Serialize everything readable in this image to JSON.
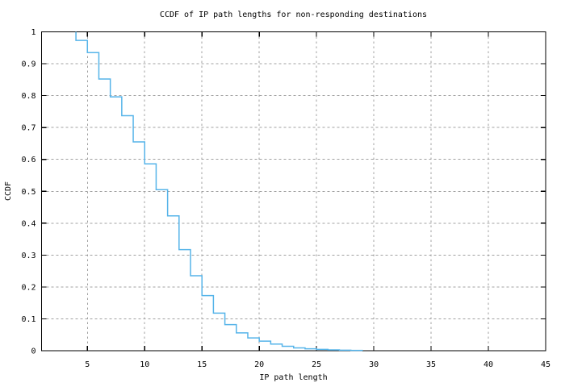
{
  "chart_data": {
    "type": "line",
    "subtype": "step-ccdf",
    "title": "CCDF of IP path lengths for non-responding destinations",
    "xlabel": "IP path length",
    "ylabel": "CCDF",
    "xlim": [
      1,
      45
    ],
    "ylim": [
      0,
      1
    ],
    "xticks": [
      5,
      10,
      15,
      20,
      25,
      30,
      35,
      40,
      45
    ],
    "yticks": [
      {
        "value": 0,
        "label": "0"
      },
      {
        "value": 0.1,
        "label": "0.1"
      },
      {
        "value": 0.2,
        "label": "0.2"
      },
      {
        "value": 0.3,
        "label": "0.3"
      },
      {
        "value": 0.4,
        "label": "0.4"
      },
      {
        "value": 0.5,
        "label": "0.5"
      },
      {
        "value": 0.6,
        "label": "0.6"
      },
      {
        "value": 0.7,
        "label": "0.7"
      },
      {
        "value": 0.8,
        "label": "0.8"
      },
      {
        "value": 0.9,
        "label": "0.9"
      },
      {
        "value": 1,
        "label": "1"
      }
    ],
    "grid": true,
    "legend": "none",
    "colors": {
      "line": "#56B4E9",
      "grid": "#a0a0a0",
      "border": "#000000",
      "background": "#ffffff",
      "text": "#000000"
    },
    "series": [
      {
        "name": "ccdf-of-ip-path-length",
        "style": "steps",
        "points": [
          [
            4,
            1.0
          ],
          [
            4,
            0.973
          ],
          [
            5,
            0.935
          ],
          [
            6,
            0.852
          ],
          [
            7,
            0.796
          ],
          [
            8,
            0.737
          ],
          [
            9,
            0.655
          ],
          [
            10,
            0.586
          ],
          [
            11,
            0.505
          ],
          [
            12,
            0.423
          ],
          [
            13,
            0.317
          ],
          [
            14,
            0.235
          ],
          [
            15,
            0.173
          ],
          [
            16,
            0.118
          ],
          [
            17,
            0.082
          ],
          [
            18,
            0.056
          ],
          [
            19,
            0.04
          ],
          [
            20,
            0.03
          ],
          [
            21,
            0.021
          ],
          [
            22,
            0.014
          ],
          [
            23,
            0.009
          ],
          [
            24,
            0.006
          ],
          [
            25,
            0.004
          ],
          [
            26,
            0.0025
          ],
          [
            27,
            0.0015
          ],
          [
            28,
            0.0008
          ],
          [
            29,
            0.0
          ]
        ]
      }
    ]
  }
}
